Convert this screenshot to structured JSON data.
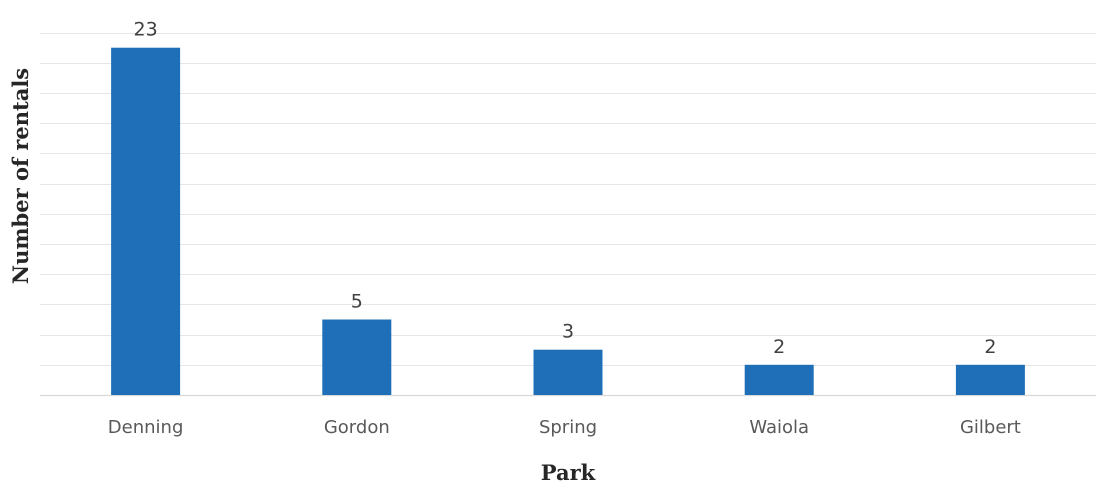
{
  "chart_data": {
    "type": "bar",
    "title": "",
    "xlabel": "Park",
    "ylabel": "Number of rentals",
    "categories": [
      "Denning",
      "Gordon",
      "Spring",
      "Waiola",
      "Gilbert"
    ],
    "values": [
      23,
      5,
      3,
      2,
      2
    ],
    "data_labels": [
      "23",
      "5",
      "3",
      "2",
      "2"
    ],
    "ylim": [
      0,
      24
    ],
    "grid": true,
    "legend": "none",
    "colors": {
      "bar": "#1e6fb8",
      "grid": "#e6e6e6",
      "axis": "#d9d9d9"
    }
  }
}
